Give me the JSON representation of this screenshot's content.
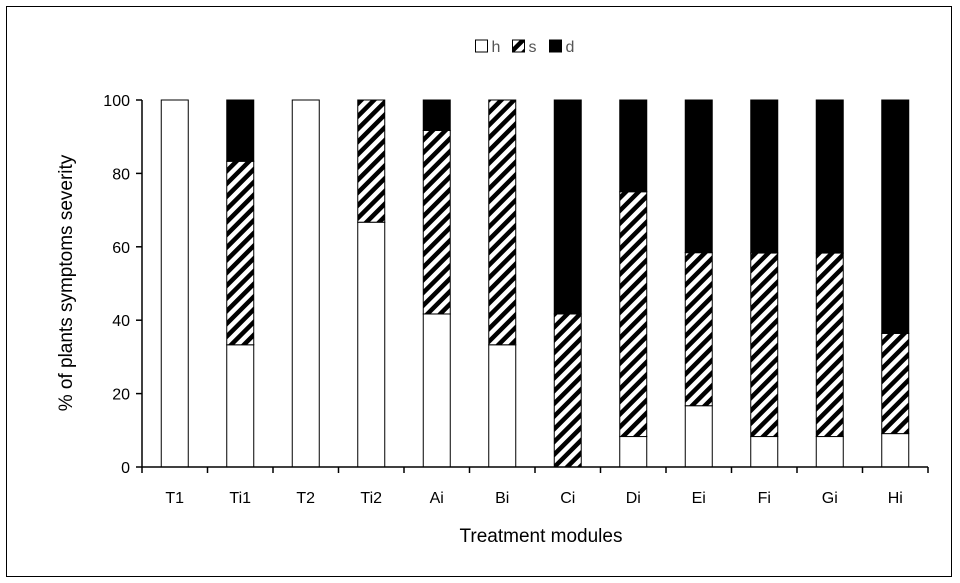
{
  "chart_data": {
    "type": "bar",
    "stacked": true,
    "title": "",
    "xlabel": "Treatment modules",
    "ylabel": "% of plants symptoms severity",
    "ylim": [
      0,
      100
    ],
    "yticks": [
      0,
      20,
      40,
      60,
      80,
      100
    ],
    "grid": false,
    "legend_position": "top-center",
    "categories": [
      "T1",
      "Ti1",
      "T2",
      "Ti2",
      "Ai",
      "Bi",
      "Ci",
      "Di",
      "Ei",
      "Fi",
      "Gi",
      "Hi"
    ],
    "series": [
      {
        "name": "h",
        "fill": "white",
        "values": [
          100,
          33.3,
          100,
          66.7,
          41.7,
          33.3,
          0,
          8.3,
          16.7,
          8.3,
          8.3,
          9.1
        ]
      },
      {
        "name": "s",
        "fill": "hatched",
        "values": [
          0,
          50,
          0,
          33.3,
          50,
          66.7,
          41.7,
          66.7,
          41.7,
          50,
          50,
          27.3
        ]
      },
      {
        "name": "d",
        "fill": "black",
        "values": [
          0,
          16.7,
          0,
          0,
          8.3,
          0,
          58.3,
          25,
          41.6,
          41.7,
          41.7,
          63.6
        ]
      }
    ]
  }
}
